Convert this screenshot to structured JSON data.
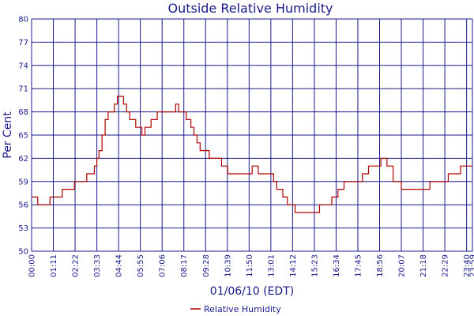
{
  "chart_data": {
    "type": "line",
    "title": "Outside Relative Humidity",
    "xlabel": "01/06/10 (EDT)",
    "ylabel": "Per Cent",
    "xlim": [
      "00:00",
      "23:59"
    ],
    "ylim": [
      50,
      80
    ],
    "grid": true,
    "legend": "bottom-center",
    "colors": {
      "series": "#b00000",
      "grid": "#1a1a8c",
      "text": "#1a1a8c"
    },
    "y_ticks": [
      "50",
      "53",
      "56",
      "59",
      "62",
      "65",
      "68",
      "71",
      "74",
      "77",
      "80"
    ],
    "x_ticks": [
      "00:00",
      "01:11",
      "02:22",
      "03:33",
      "04:44",
      "05:55",
      "07:06",
      "08:17",
      "09:28",
      "10:39",
      "11:50",
      "13:01",
      "14:12",
      "15:23",
      "16:34",
      "17:45",
      "18:56",
      "20:07",
      "21:18",
      "22:29",
      "23:40",
      "23:59"
    ],
    "series": [
      {
        "name": "Relative Humidity",
        "x": [
          "00:00",
          "00:15",
          "00:20",
          "00:40",
          "01:00",
          "01:20",
          "01:40",
          "02:00",
          "02:20",
          "02:40",
          "03:00",
          "03:15",
          "03:25",
          "03:33",
          "03:40",
          "03:50",
          "04:00",
          "04:10",
          "04:20",
          "04:30",
          "04:40",
          "04:50",
          "05:00",
          "05:10",
          "05:20",
          "05:30",
          "05:40",
          "05:50",
          "06:00",
          "06:10",
          "06:20",
          "06:30",
          "06:40",
          "06:50",
          "07:00",
          "07:10",
          "07:20",
          "07:30",
          "07:40",
          "07:50",
          "08:00",
          "08:10",
          "08:17",
          "08:25",
          "08:40",
          "08:50",
          "09:00",
          "09:10",
          "09:20",
          "09:30",
          "09:40",
          "09:50",
          "10:00",
          "10:20",
          "10:40",
          "11:00",
          "11:10",
          "11:20",
          "11:40",
          "12:00",
          "12:20",
          "12:40",
          "13:00",
          "13:10",
          "13:20",
          "13:40",
          "13:50",
          "13:55",
          "14:00",
          "14:10",
          "14:20",
          "14:40",
          "15:00",
          "15:20",
          "15:40",
          "16:00",
          "16:20",
          "16:40",
          "17:00",
          "17:20",
          "17:40",
          "18:00",
          "18:20",
          "18:40",
          "19:00",
          "19:10",
          "19:20",
          "19:40",
          "20:00",
          "20:07",
          "20:20",
          "20:40",
          "21:00",
          "21:20",
          "21:40",
          "22:00",
          "22:20",
          "22:40",
          "23:00",
          "23:20",
          "23:40",
          "23:50",
          "23:59"
        ],
        "values": [
          57,
          57,
          56,
          56,
          57,
          57,
          58,
          58,
          59,
          59,
          60,
          60,
          61,
          62,
          63,
          65,
          67,
          68,
          68,
          69,
          70,
          70,
          69,
          68,
          67,
          67,
          66,
          66,
          65,
          66,
          66,
          67,
          67,
          68,
          68,
          68,
          68,
          68,
          68,
          69,
          68,
          68,
          68,
          67,
          66,
          65,
          64,
          63,
          63,
          63,
          62,
          62,
          62,
          61,
          60,
          60,
          60,
          60,
          60,
          61,
          60,
          60,
          60,
          59,
          58,
          57,
          57,
          56,
          56,
          56,
          55,
          55,
          55,
          55,
          56,
          56,
          57,
          58,
          59,
          59,
          59,
          60,
          61,
          61,
          62,
          62,
          61,
          59,
          59,
          58,
          58,
          58,
          58,
          58,
          59,
          59,
          59,
          60,
          60,
          61,
          61,
          61,
          61
        ]
      }
    ]
  }
}
